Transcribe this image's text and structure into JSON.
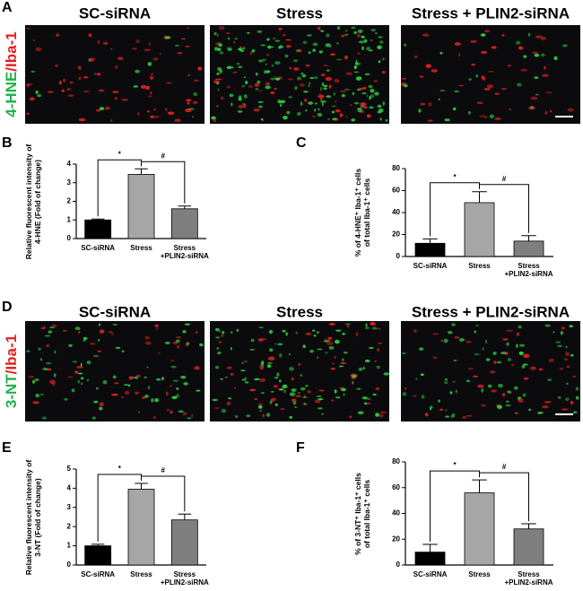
{
  "panel_labels": [
    "A",
    "B",
    "C",
    "D",
    "E",
    "F"
  ],
  "rows": [
    {
      "stain": [
        "4-HNE",
        "/Iba-1"
      ],
      "groups": [
        "SC-siRNA",
        "Stress",
        "Stress + PLIN2-siRNA"
      ]
    },
    {
      "stain": [
        "3-NT",
        "/Iba-1"
      ],
      "groups": [
        "SC-siRNA",
        "Stress",
        "Stress + PLIN2-siRNA"
      ]
    }
  ],
  "chart_data": [
    {
      "type": "bar",
      "ylabel": "Relative fluorescent intensity of\n4-HNE (Fold of change)",
      "categories": [
        "SC-siRNA",
        "Stress",
        "Stress\n+PLIN2-siRNA"
      ],
      "values": [
        1.0,
        3.45,
        1.6
      ],
      "errors": [
        0.05,
        0.3,
        0.15
      ],
      "colors": [
        "#000000",
        "#a6a6a6",
        "#7f7f7f"
      ],
      "ylim": [
        0,
        4
      ],
      "yticks": [
        0,
        1,
        2,
        3,
        4
      ],
      "annotations": [
        {
          "text": "*",
          "between": [
            "SC-siRNA",
            "Stress"
          ]
        },
        {
          "text": "#",
          "between": [
            "Stress",
            "Stress\n+PLIN2-siRNA"
          ]
        }
      ]
    },
    {
      "type": "bar",
      "ylabel": "% of 4-HNE⁺ Iba-1⁺ cells\nof total Iba-1⁺ cells",
      "categories": [
        "SC-siRNA",
        "Stress",
        "Stress\n+PLIN2-siRNA"
      ],
      "values": [
        12,
        49,
        14
      ],
      "errors": [
        4,
        10,
        5
      ],
      "colors": [
        "#000000",
        "#a6a6a6",
        "#7f7f7f"
      ],
      "ylim": [
        0,
        80
      ],
      "yticks": [
        0,
        20,
        40,
        60,
        80
      ],
      "annotations": [
        {
          "text": "*",
          "between": [
            "SC-siRNA",
            "Stress"
          ]
        },
        {
          "text": "#",
          "between": [
            "Stress",
            "Stress\n+PLIN2-siRNA"
          ]
        }
      ]
    },
    {
      "type": "bar",
      "ylabel": "Relative fluorescent intensity of\n3-NT (Fold of change)",
      "categories": [
        "SC-siRNA",
        "Stress",
        "Stress\n+PLIN2-siRNA"
      ],
      "values": [
        1.0,
        3.95,
        2.35
      ],
      "errors": [
        0.08,
        0.3,
        0.3
      ],
      "colors": [
        "#000000",
        "#a6a6a6",
        "#7f7f7f"
      ],
      "ylim": [
        0,
        5
      ],
      "yticks": [
        0,
        1,
        2,
        3,
        4,
        5
      ],
      "annotations": [
        {
          "text": "*",
          "between": [
            "SC-siRNA",
            "Stress"
          ]
        },
        {
          "text": "#",
          "between": [
            "Stress",
            "Stress\n+PLIN2-siRNA"
          ]
        }
      ]
    },
    {
      "type": "bar",
      "ylabel": "% of 3-NT⁺ Iba-1⁺ cells\nof total Iba-1⁺ cells",
      "categories": [
        "SC-siRNA",
        "Stress",
        "Stress\n+PLIN2-siRNA"
      ],
      "values": [
        10,
        56,
        28
      ],
      "errors": [
        6,
        10,
        4
      ],
      "colors": [
        "#000000",
        "#a6a6a6",
        "#7f7f7f"
      ],
      "ylim": [
        0,
        80
      ],
      "yticks": [
        0,
        20,
        40,
        60,
        80
      ],
      "annotations": [
        {
          "text": "*",
          "between": [
            "SC-siRNA",
            "Stress"
          ]
        },
        {
          "text": "#",
          "between": [
            "Stress",
            "Stress\n+PLIN2-siRNA"
          ]
        }
      ]
    }
  ]
}
